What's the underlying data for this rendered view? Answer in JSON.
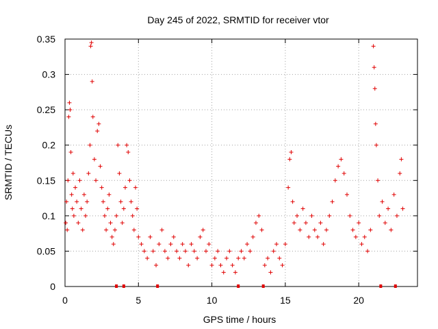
{
  "chart_data": {
    "type": "scatter",
    "title": "Day 245 of 2022, SRMTID for receiver vtor",
    "xlabel": "GPS time / hours",
    "ylabel": "SRMTID / TECUs",
    "xlim": [
      0,
      24
    ],
    "ylim": [
      0,
      0.35
    ],
    "xticks": [
      0,
      5,
      10,
      15,
      20
    ],
    "xtick_labels": [
      "0",
      "5",
      "10",
      "15",
      "20"
    ],
    "yticks": [
      0,
      0.05,
      0.1,
      0.15,
      0.2,
      0.25,
      0.3,
      0.35
    ],
    "ytick_labels": [
      "0",
      "0.05",
      "0.1",
      "0.15",
      "0.2",
      "0.25",
      "0.3",
      "0.35"
    ],
    "grid": true,
    "marker": "plus",
    "color": "#e00000",
    "series": [
      {
        "name": "SRMTID",
        "points": [
          [
            0.05,
            0.09
          ],
          [
            0.1,
            0.12
          ],
          [
            0.15,
            0.08
          ],
          [
            0.2,
            0.15
          ],
          [
            0.25,
            0.24
          ],
          [
            0.3,
            0.26
          ],
          [
            0.35,
            0.25
          ],
          [
            0.4,
            0.19
          ],
          [
            0.45,
            0.13
          ],
          [
            0.5,
            0.11
          ],
          [
            0.55,
            0.16
          ],
          [
            0.6,
            0.1
          ],
          [
            0.7,
            0.14
          ],
          [
            0.8,
            0.12
          ],
          [
            0.9,
            0.09
          ],
          [
            1.0,
            0.15
          ],
          [
            1.1,
            0.11
          ],
          [
            1.2,
            0.08
          ],
          [
            1.3,
            0.13
          ],
          [
            1.4,
            0.1
          ],
          [
            1.5,
            0.12
          ],
          [
            1.6,
            0.16
          ],
          [
            1.7,
            0.2
          ],
          [
            1.75,
            0.34
          ],
          [
            1.8,
            0.345
          ],
          [
            1.85,
            0.29
          ],
          [
            1.9,
            0.24
          ],
          [
            2.0,
            0.18
          ],
          [
            2.1,
            0.15
          ],
          [
            2.2,
            0.22
          ],
          [
            2.3,
            0.23
          ],
          [
            2.4,
            0.17
          ],
          [
            2.5,
            0.14
          ],
          [
            2.6,
            0.12
          ],
          [
            2.7,
            0.1
          ],
          [
            2.8,
            0.08
          ],
          [
            2.9,
            0.11
          ],
          [
            3.0,
            0.13
          ],
          [
            3.1,
            0.09
          ],
          [
            3.2,
            0.07
          ],
          [
            3.3,
            0.06
          ],
          [
            3.4,
            0.08
          ],
          [
            3.5,
            0.1
          ],
          [
            3.6,
            0.2
          ],
          [
            3.7,
            0.16
          ],
          [
            3.8,
            0.12
          ],
          [
            3.9,
            0.09
          ],
          [
            4.0,
            0.11
          ],
          [
            4.1,
            0.14
          ],
          [
            4.2,
            0.2
          ],
          [
            4.3,
            0.19
          ],
          [
            4.4,
            0.15
          ],
          [
            4.5,
            0.12
          ],
          [
            4.6,
            0.1
          ],
          [
            4.7,
            0.08
          ],
          [
            4.8,
            0.14
          ],
          [
            4.9,
            0.11
          ],
          [
            5.0,
            0.07
          ],
          [
            5.2,
            0.06
          ],
          [
            5.4,
            0.05
          ],
          [
            5.6,
            0.04
          ],
          [
            5.8,
            0.07
          ],
          [
            6.0,
            0.05
          ],
          [
            6.2,
            0.03
          ],
          [
            6.4,
            0.06
          ],
          [
            6.6,
            0.08
          ],
          [
            6.8,
            0.05
          ],
          [
            7.0,
            0.04
          ],
          [
            7.2,
            0.06
          ],
          [
            7.4,
            0.07
          ],
          [
            7.6,
            0.05
          ],
          [
            7.8,
            0.04
          ],
          [
            8.0,
            0.06
          ],
          [
            8.2,
            0.05
          ],
          [
            8.4,
            0.03
          ],
          [
            8.6,
            0.06
          ],
          [
            8.8,
            0.05
          ],
          [
            9.0,
            0.04
          ],
          [
            9.2,
            0.07
          ],
          [
            9.4,
            0.08
          ],
          [
            9.6,
            0.05
          ],
          [
            9.8,
            0.06
          ],
          [
            10.0,
            0.03
          ],
          [
            10.2,
            0.04
          ],
          [
            10.4,
            0.05
          ],
          [
            10.6,
            0.03
          ],
          [
            10.8,
            0.02
          ],
          [
            11.0,
            0.04
          ],
          [
            11.2,
            0.05
          ],
          [
            11.4,
            0.03
          ],
          [
            11.6,
            0.02
          ],
          [
            11.8,
            0.04
          ],
          [
            12.0,
            0.05
          ],
          [
            12.2,
            0.04
          ],
          [
            12.4,
            0.06
          ],
          [
            12.6,
            0.05
          ],
          [
            12.8,
            0.07
          ],
          [
            13.0,
            0.09
          ],
          [
            13.2,
            0.1
          ],
          [
            13.4,
            0.08
          ],
          [
            13.6,
            0.03
          ],
          [
            13.8,
            0.04
          ],
          [
            14.0,
            0.02
          ],
          [
            14.2,
            0.05
          ],
          [
            14.4,
            0.06
          ],
          [
            14.6,
            0.04
          ],
          [
            14.8,
            0.03
          ],
          [
            15.0,
            0.06
          ],
          [
            15.2,
            0.14
          ],
          [
            15.3,
            0.18
          ],
          [
            15.4,
            0.19
          ],
          [
            15.5,
            0.12
          ],
          [
            15.6,
            0.09
          ],
          [
            15.8,
            0.1
          ],
          [
            16.0,
            0.08
          ],
          [
            16.2,
            0.11
          ],
          [
            16.4,
            0.09
          ],
          [
            16.6,
            0.07
          ],
          [
            16.8,
            0.1
          ],
          [
            17.0,
            0.08
          ],
          [
            17.2,
            0.07
          ],
          [
            17.4,
            0.09
          ],
          [
            17.6,
            0.06
          ],
          [
            17.8,
            0.08
          ],
          [
            18.0,
            0.1
          ],
          [
            18.2,
            0.12
          ],
          [
            18.4,
            0.15
          ],
          [
            18.6,
            0.17
          ],
          [
            18.8,
            0.18
          ],
          [
            19.0,
            0.16
          ],
          [
            19.2,
            0.13
          ],
          [
            19.4,
            0.1
          ],
          [
            19.6,
            0.08
          ],
          [
            19.8,
            0.07
          ],
          [
            20.0,
            0.09
          ],
          [
            20.2,
            0.06
          ],
          [
            20.4,
            0.07
          ],
          [
            20.6,
            0.05
          ],
          [
            20.8,
            0.08
          ],
          [
            21.0,
            0.34
          ],
          [
            21.05,
            0.31
          ],
          [
            21.1,
            0.28
          ],
          [
            21.15,
            0.23
          ],
          [
            21.2,
            0.2
          ],
          [
            21.3,
            0.15
          ],
          [
            21.4,
            0.1
          ],
          [
            21.6,
            0.12
          ],
          [
            21.8,
            0.09
          ],
          [
            22.0,
            0.11
          ],
          [
            22.2,
            0.08
          ],
          [
            22.4,
            0.13
          ],
          [
            22.6,
            0.1
          ],
          [
            22.8,
            0.16
          ],
          [
            22.9,
            0.18
          ],
          [
            23.0,
            0.11
          ]
        ]
      }
    ],
    "zero_markers": [
      3.5,
      4.0,
      6.3,
      11.8,
      13.5,
      21.5,
      22.5
    ]
  }
}
